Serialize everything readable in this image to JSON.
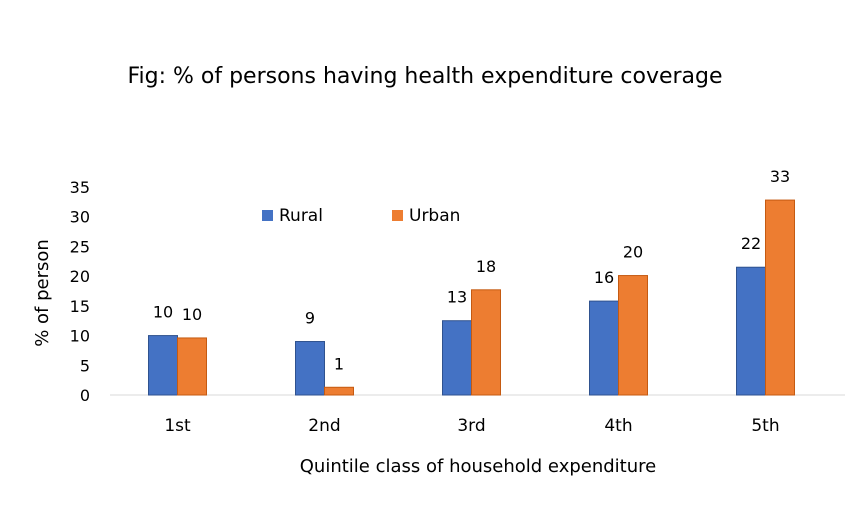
{
  "chart_data": {
    "type": "bar",
    "title": "Fig: % of persons having health expenditure coverage",
    "xlabel": "Quintile class of household expenditure",
    "ylabel": "% of person",
    "categories": [
      "1st",
      "2nd",
      "3rd",
      "4th",
      "5th"
    ],
    "series": [
      {
        "name": "Rural",
        "values": [
          10,
          9,
          12.5,
          15.8,
          21.5
        ],
        "labels": [
          "10",
          "9",
          "13",
          "16",
          "22"
        ],
        "color": "#4472C4"
      },
      {
        "name": "Urban",
        "values": [
          9.6,
          1.3,
          17.7,
          20.1,
          32.8
        ],
        "labels": [
          "10",
          "1",
          "18",
          "20",
          "33"
        ],
        "color": "#ED7D31"
      }
    ],
    "yticks": [
      "0",
      "5",
      "10",
      "15",
      "20",
      "25",
      "30",
      "35"
    ],
    "ylim": [
      0,
      35
    ],
    "grid": false,
    "legend": "top-left"
  }
}
